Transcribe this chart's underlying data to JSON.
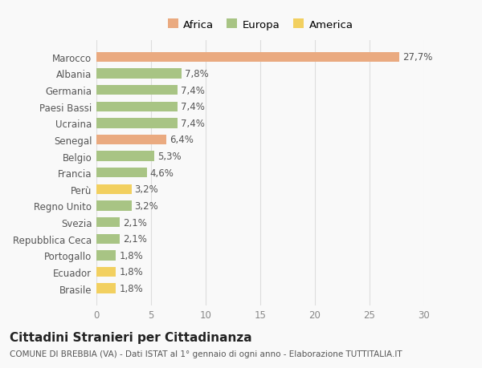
{
  "categories": [
    "Brasile",
    "Ecuador",
    "Portogallo",
    "Repubblica Ceca",
    "Svezia",
    "Regno Unito",
    "Perù",
    "Francia",
    "Belgio",
    "Senegal",
    "Ucraina",
    "Paesi Bassi",
    "Germania",
    "Albania",
    "Marocco"
  ],
  "values": [
    1.8,
    1.8,
    1.8,
    2.1,
    2.1,
    3.2,
    3.2,
    4.6,
    5.3,
    6.4,
    7.4,
    7.4,
    7.4,
    7.8,
    27.7
  ],
  "labels": [
    "1,8%",
    "1,8%",
    "1,8%",
    "2,1%",
    "2,1%",
    "3,2%",
    "3,2%",
    "4,6%",
    "5,3%",
    "6,4%",
    "7,4%",
    "7,4%",
    "7,4%",
    "7,8%",
    "27,7%"
  ],
  "colors": [
    "#f2d060",
    "#f2d060",
    "#a8c484",
    "#a8c484",
    "#a8c484",
    "#a8c484",
    "#f2d060",
    "#a8c484",
    "#a8c484",
    "#eaaa80",
    "#a8c484",
    "#a8c484",
    "#a8c484",
    "#a8c484",
    "#eaaa80"
  ],
  "legend": [
    {
      "label": "Africa",
      "color": "#eaaa80"
    },
    {
      "label": "Europa",
      "color": "#a8c484"
    },
    {
      "label": "America",
      "color": "#f2d060"
    }
  ],
  "title": "Cittadini Stranieri per Cittadinanza",
  "subtitle": "COMUNE DI BREBBIA (VA) - Dati ISTAT al 1° gennaio di ogni anno - Elaborazione TUTTITALIA.IT",
  "xlim": [
    0,
    30
  ],
  "xticks": [
    0,
    5,
    10,
    15,
    20,
    25,
    30
  ],
  "bg_color": "#f9f9f9",
  "bar_height": 0.6,
  "label_fontsize": 8.5,
  "ytick_fontsize": 8.5,
  "xtick_fontsize": 8.5,
  "title_fontsize": 11,
  "subtitle_fontsize": 7.5,
  "legend_fontsize": 9.5
}
